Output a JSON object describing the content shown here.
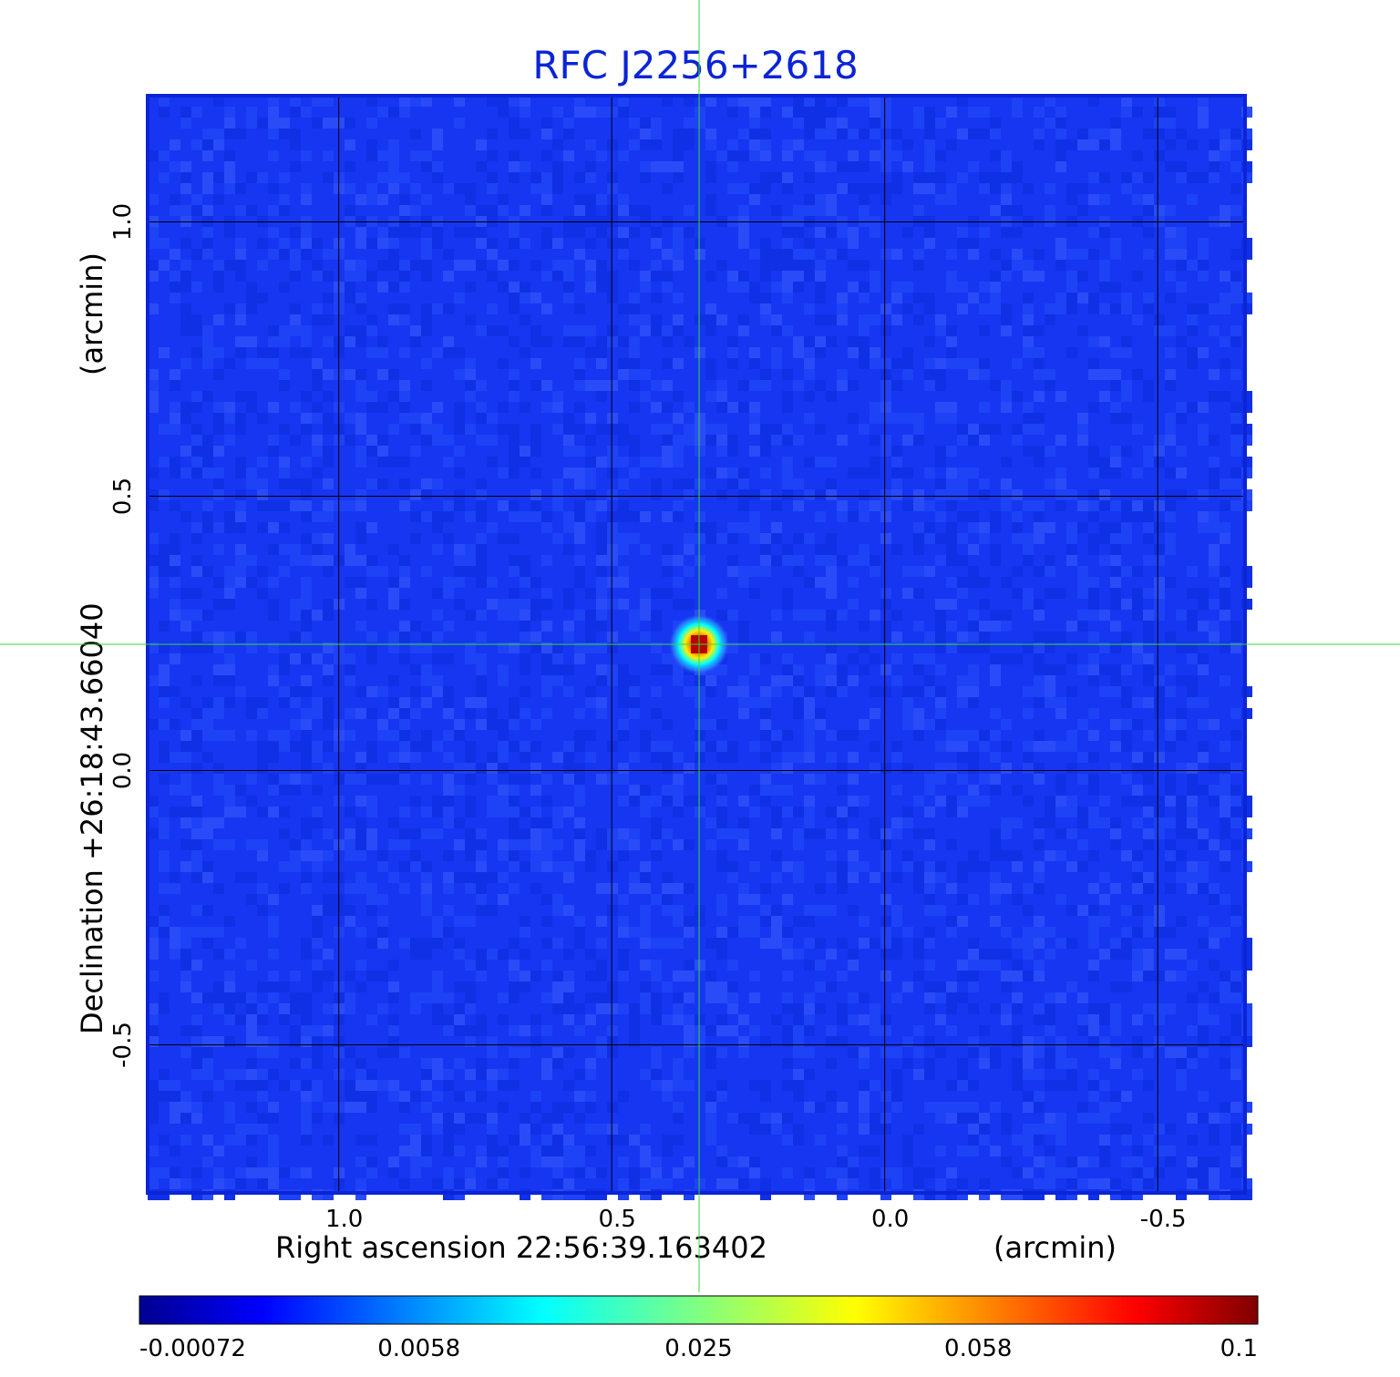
{
  "chart_data": {
    "type": "heatmap",
    "title": "RFC J2256+2618",
    "xlabel": "Right ascension  22:56:39.163402",
    "xlabel_unit": "(arcmin)",
    "ylabel": "Declination  +26:18:43.66040",
    "ylabel_unit": "(arcmin)",
    "xlim": [
      1.35,
      -0.66
    ],
    "ylim": [
      -0.77,
      1.23
    ],
    "x_ticks": [
      1.0,
      0.5,
      0.0,
      -0.5
    ],
    "x_tick_labels": [
      "1.0",
      "0.5",
      "0.0",
      "-0.5"
    ],
    "y_ticks": [
      1.0,
      0.5,
      0.0,
      -0.5
    ],
    "y_tick_labels": [
      "1.0",
      "0.5",
      "0.0",
      "-0.5"
    ],
    "grid": true,
    "crosshair": {
      "x": 0.34,
      "y": 0.23,
      "color": "#33dd33"
    },
    "source_peak": {
      "x": 0.34,
      "y": 0.23,
      "value": 0.1
    },
    "colorbar": {
      "ticks": [
        -0.00072,
        0.0058,
        0.025,
        0.058,
        0.1
      ],
      "tick_labels": [
        "-0.00072",
        "0.0058",
        "0.025",
        "0.058",
        "0.1"
      ],
      "colormap": "jet"
    },
    "colors": {
      "background_pixel": "#1636f2",
      "frame": "#0b24d6",
      "grid": "#000000",
      "crosshair": "#33dd33"
    }
  }
}
